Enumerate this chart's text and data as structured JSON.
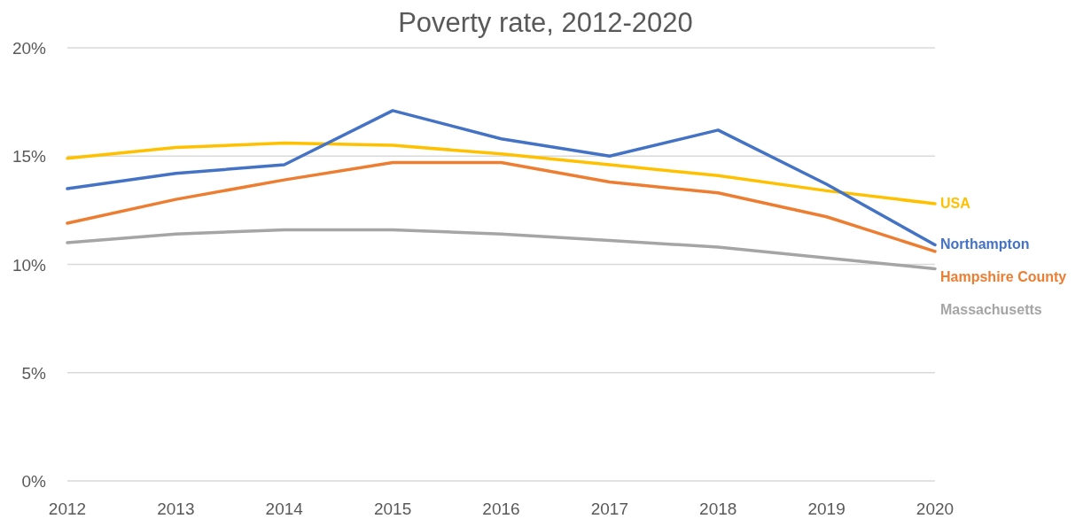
{
  "chart_data": {
    "type": "line",
    "title": "Poverty rate, 2012-2020",
    "categories": [
      "2012",
      "2013",
      "2014",
      "2015",
      "2016",
      "2017",
      "2018",
      "2019",
      "2020"
    ],
    "series": [
      {
        "name": "USA",
        "color": "#ffc000",
        "values": [
          14.9,
          15.4,
          15.6,
          15.5,
          15.1,
          14.6,
          14.1,
          13.4,
          12.8
        ]
      },
      {
        "name": "Northampton",
        "color": "#4472c4",
        "values": [
          13.5,
          14.2,
          14.6,
          17.1,
          15.8,
          15.0,
          16.2,
          13.7,
          10.9
        ]
      },
      {
        "name": "Hampshire County",
        "color": "#ed7d31",
        "values": [
          11.9,
          13.0,
          13.9,
          14.7,
          14.7,
          13.8,
          13.3,
          12.2,
          10.6
        ]
      },
      {
        "name": "Massachusetts",
        "color": "#a5a5a5",
        "values": [
          11.0,
          11.4,
          11.6,
          11.6,
          11.4,
          11.1,
          10.8,
          10.3,
          9.8
        ]
      }
    ],
    "ylim": [
      0,
      20
    ],
    "yticks": [
      {
        "value": 0,
        "label": "0%"
      },
      {
        "value": 5,
        "label": "5%"
      },
      {
        "value": 10,
        "label": "10%"
      },
      {
        "value": 15,
        "label": "15%"
      },
      {
        "value": 20,
        "label": "20%"
      }
    ],
    "grid": "y",
    "line_style": "solid",
    "marker": "none"
  }
}
